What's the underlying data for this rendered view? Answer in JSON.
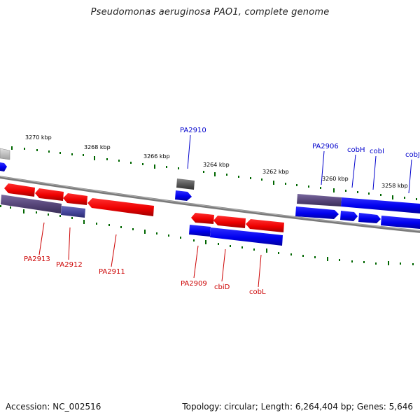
{
  "title": "Pseudomonas aeruginosa PAO1, complete genome",
  "footer": {
    "accession": "Accession: NC_002516",
    "summary": "Topology: circular; Length: 6,264,404 bp; Genes: 5,646"
  },
  "colors": {
    "forward": "#ee0000",
    "reverse": "#0000ee",
    "forward_label": "#cc0000",
    "reverse_label": "#0000cc",
    "tick": "#006600",
    "backbone": "#808080",
    "grey_gene": "#555555",
    "blended": "#554477"
  },
  "scale_labels": [
    "3270 kbp",
    "3268 kbp",
    "3266 kbp",
    "3264 kbp",
    "3262 kbp",
    "3260 kbp",
    "3258 kbp"
  ],
  "genes_top": [
    "PA2910",
    "PA2906",
    "cobH",
    "cobI",
    "cobJ"
  ],
  "genes_bottom": [
    "PA2913",
    "PA2912",
    "PA2911",
    "PA2909",
    "cbiD",
    "cobL"
  ]
}
